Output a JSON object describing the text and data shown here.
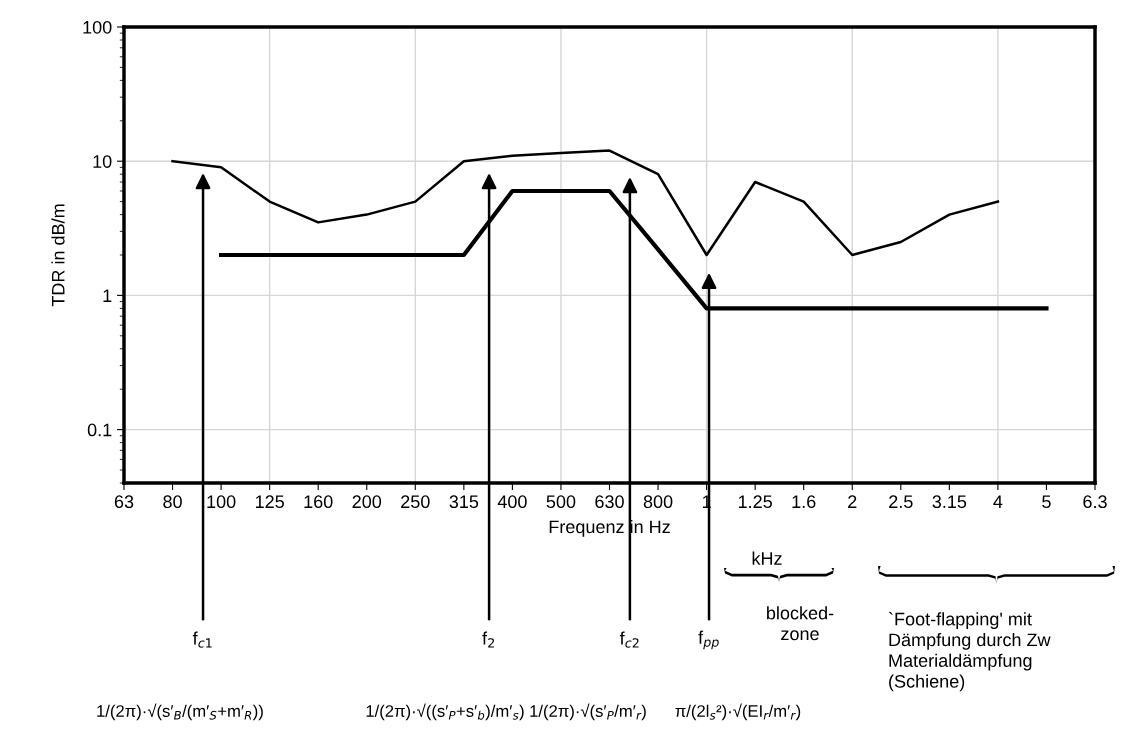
{
  "chart_data": {
    "type": "line",
    "xlabel": "Frequenz in Hz",
    "ylabel": "TDR in dB/m",
    "log": true,
    "categories": [
      "63",
      "80",
      "100",
      "125",
      "160",
      "200",
      "250",
      "315",
      "400",
      "500",
      "630",
      "800",
      "1",
      "1.25",
      "1.6",
      "2",
      "2.5",
      "3.15",
      "4",
      "5",
      "6.3"
    ],
    "ylim": [
      0.04,
      100
    ],
    "yticks": [
      0.1,
      1,
      10,
      100
    ],
    "grid": true,
    "series": [
      {
        "color": "#000000",
        "values": [
          null,
          10,
          9,
          5,
          3.5,
          4,
          5,
          10,
          11,
          11.5,
          12,
          8,
          2,
          7,
          5,
          2,
          2.5,
          4,
          5,
          null,
          null
        ]
      },
      {
        "color": "#000000",
        "values": [
          null,
          null,
          2,
          2,
          2,
          2,
          2,
          2,
          6,
          6,
          6,
          2.2,
          0.8,
          0.8,
          0.8,
          0.8,
          0.8,
          0.8,
          0.8,
          0.8,
          null
        ]
      }
    ],
    "annotations": [
      "f$_{c1}$",
      "f$_{2}$",
      "f$_{c2}$",
      "f$_{pp}$",
      "1/(2π)·√(s′$_{B}$/(m′$_{S}$+m′$_{R}$))",
      "1/(2π)·√((s′$_{P}$+s′$_{b}$)/m′$_{s}$)",
      "1/(2π)·√(s′$_{P}$/m′$_{r}$)",
      "π/(2l$_{s}$²)·√(EI$_{r}$/m′$_{r}$)",
      "kHz",
      "blocked-\nzone",
      "`Foot-flapping' mit\nDämpfung durch Zw\nMaterialdämpfung\n(Schiene)"
    ]
  }
}
